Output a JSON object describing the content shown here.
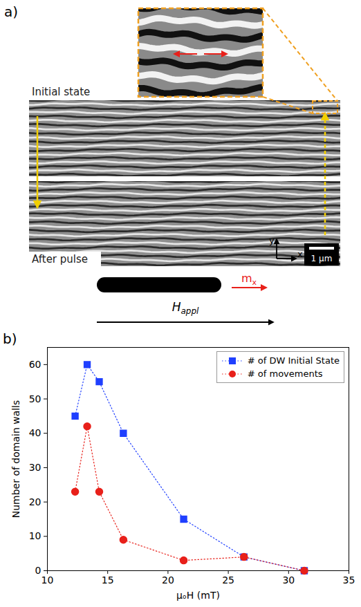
{
  "panel_a": {
    "label": "a)",
    "initial_label": "Initial state",
    "after_label": "After pulse",
    "axis_x": "x",
    "axis_y": "y",
    "scale_bar": "1 μm",
    "magnetization": {
      "base": "m",
      "sub": "x"
    },
    "field": {
      "base": "H",
      "sub": "appl"
    }
  },
  "chart_data": {
    "type": "line",
    "panel_label": "b)",
    "xlabel": "μₒH (mT)",
    "ylabel": "Number of domain walls",
    "x": [
      12.3,
      13.3,
      14.3,
      16.3,
      21.3,
      26.3,
      31.3
    ],
    "series": [
      {
        "name": "# of DW Initial State",
        "color": "#1f3fff",
        "marker": "square",
        "line_style": "dotted",
        "values": [
          45,
          60,
          55,
          40,
          15,
          4,
          0
        ]
      },
      {
        "name": "# of movements",
        "color": "#e8201a",
        "marker": "circle",
        "line_style": "dotted",
        "values": [
          23,
          42,
          23,
          9,
          3,
          4,
          0
        ]
      }
    ],
    "xlim": [
      10,
      35
    ],
    "xticks": [
      10,
      15,
      20,
      25,
      30,
      35
    ],
    "ylim": [
      0,
      65
    ],
    "yticks": [
      0,
      10,
      20,
      30,
      40,
      50,
      60
    ],
    "legend": "top-right",
    "grid": false
  }
}
